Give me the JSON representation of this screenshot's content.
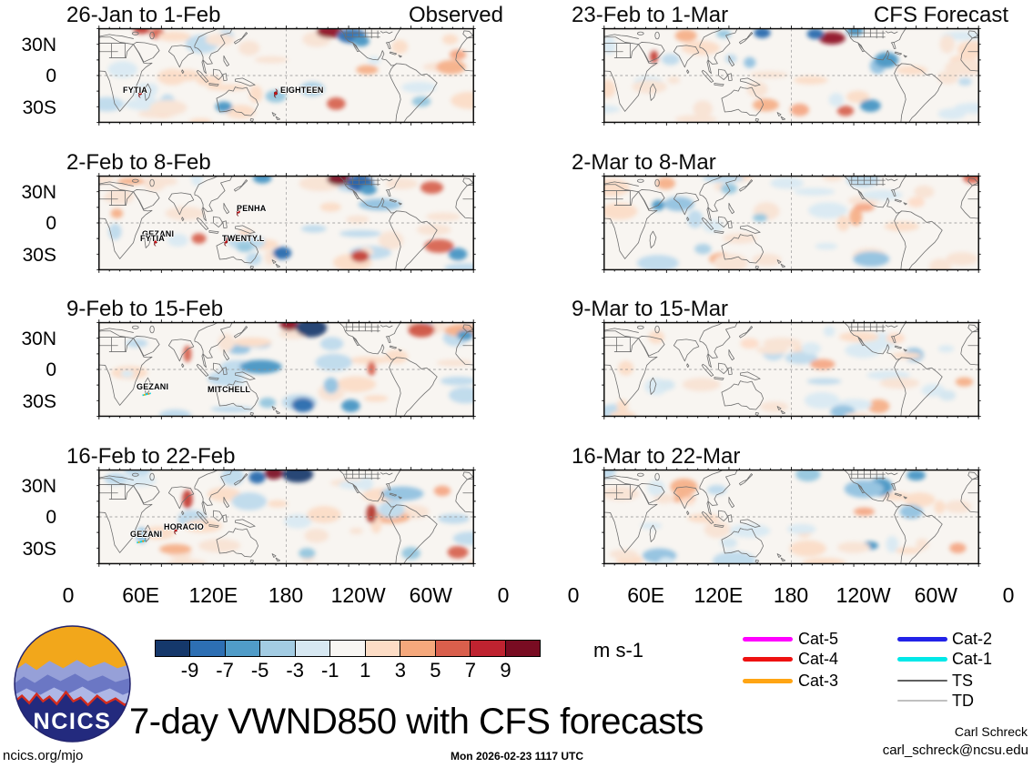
{
  "chart_data": {
    "type": "heatmap",
    "title": "7-day VWND850 with CFS forecasts",
    "units": "m s-1",
    "x_axis": {
      "ticks": [
        "0",
        "60E",
        "120E",
        "180",
        "120W",
        "60W",
        "0"
      ]
    },
    "y_axis": {
      "ticks": [
        "30N",
        "0",
        "30S"
      ]
    },
    "colorbar": {
      "ticks": [
        "-9",
        "-7",
        "-5",
        "-3",
        "-1",
        "1",
        "3",
        "5",
        "7",
        "9"
      ],
      "colors": [
        "#15386b",
        "#2d6fb3",
        "#509cc8",
        "#a3cce3",
        "#d7e8f2",
        "#f8f6f3",
        "#fcdcc5",
        "#f5a87c",
        "#d95f4c",
        "#bf2330",
        "#790c22"
      ]
    },
    "legend": [
      {
        "label": "Cat-5",
        "color": "#ff00ff"
      },
      {
        "label": "Cat-4",
        "color": "#ee1111"
      },
      {
        "label": "Cat-3",
        "color": "#ffa514"
      },
      {
        "label": "Cat-2",
        "color": "#2222e8"
      },
      {
        "label": "Cat-1",
        "color": "#00e8e8"
      },
      {
        "label": "TS",
        "color": "#606060"
      },
      {
        "label": "TD",
        "color": "#c0c0c0"
      }
    ],
    "panels": [
      {
        "title": "26-Jan to 1-Feb",
        "corner_label": "Observed",
        "storms": [
          {
            "name": "FYTIA",
            "x": 11.0,
            "y": 69,
            "icon": "hurricane"
          },
          {
            "name": "EIGHTEEN",
            "x": 47.2,
            "y": 69,
            "icon": "hurricane"
          }
        ]
      },
      {
        "title": "2-Feb to 8-Feb",
        "storms": [
          {
            "name": "PENHA",
            "x": 37.2,
            "y": 38,
            "icon": "hurricane"
          },
          {
            "name": "GEZANI",
            "x": 17.0,
            "y": 62,
            "icon": "none"
          },
          {
            "name": "FYTIA",
            "x": 15.1,
            "y": 70,
            "icon": "hurricane"
          },
          {
            "name": "TWENTY.L",
            "x": 33.9,
            "y": 70,
            "icon": "hurricane"
          }
        ]
      },
      {
        "title": "9-Feb to 15-Feb",
        "storms": [
          {
            "name": "GEZANI",
            "x": 13.0,
            "y": 76,
            "icon": "track"
          },
          {
            "name": "MITCHELL",
            "x": 32.0,
            "y": 72,
            "icon": "none"
          }
        ]
      },
      {
        "title": "16-Feb to 22-Feb",
        "storms": [
          {
            "name": "HORACIO",
            "x": 20.5,
            "y": 64,
            "icon": "hurricane"
          },
          {
            "name": "GEZANI",
            "x": 11.5,
            "y": 76,
            "icon": "track"
          }
        ]
      },
      {
        "title": "23-Feb to 1-Mar",
        "corner_label": "CFS Forecast",
        "storms": []
      },
      {
        "title": "2-Mar to 8-Mar",
        "storms": []
      },
      {
        "title": "9-Mar to 15-Mar",
        "storms": []
      },
      {
        "title": "16-Mar to 22-Mar",
        "storms": []
      }
    ]
  },
  "logo": {
    "text": "NCICS"
  },
  "footer": {
    "site": "ncics.org/mjo",
    "timestamp": "Mon 2026-02-23 1117 UTC",
    "author": "Carl Schreck",
    "email": "carl_schreck@ncsu.edu"
  }
}
